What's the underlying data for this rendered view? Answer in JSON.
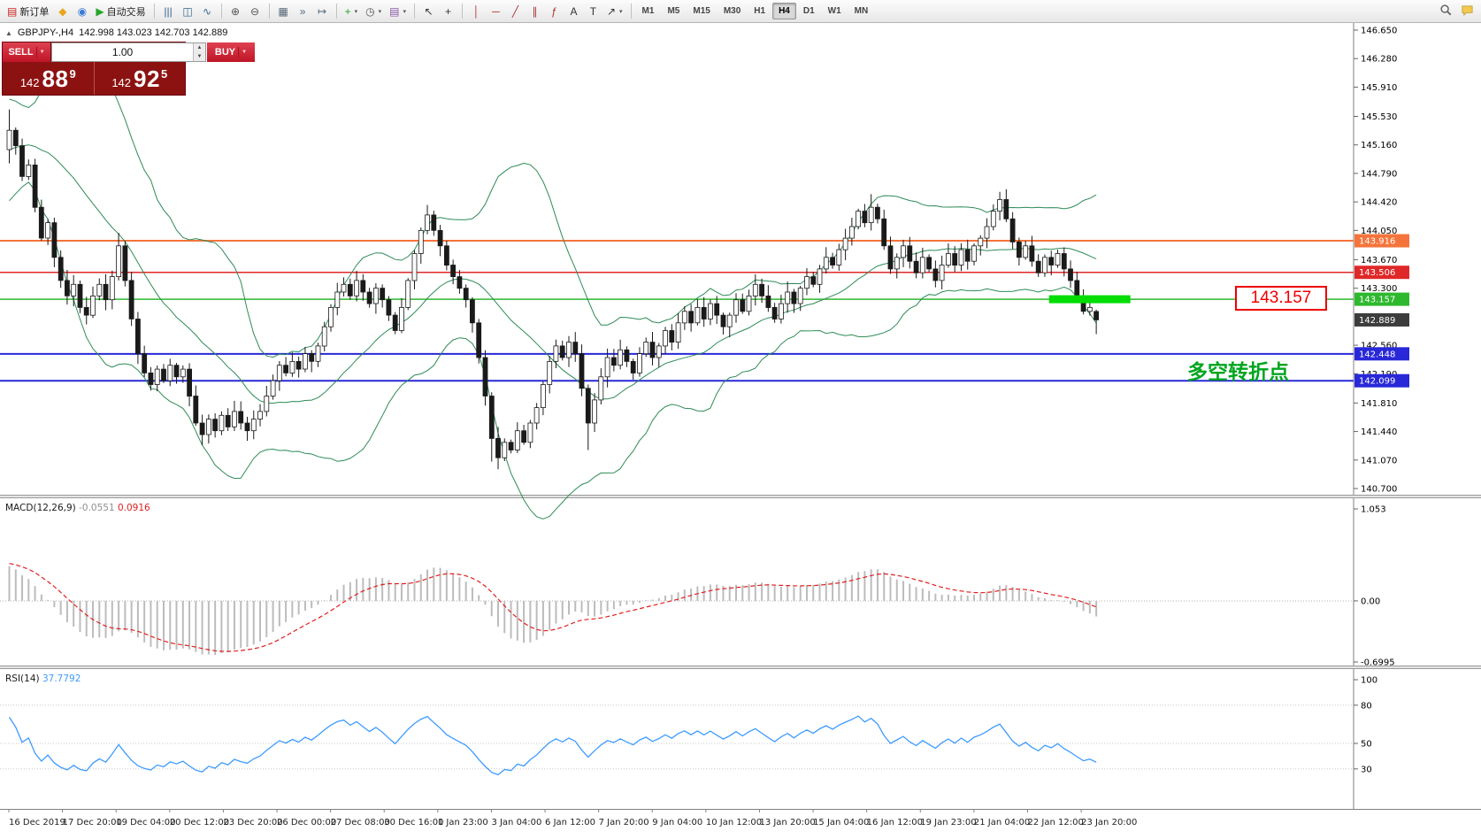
{
  "app": {
    "toolbar": {
      "groups": [
        {
          "name": "orders",
          "items": [
            {
              "name": "new-order-button",
              "glyph": "▤",
              "glyph_color": "#cc2222",
              "label": "新订单"
            },
            {
              "name": "metaeditor-button",
              "glyph": "◆",
              "glyph_color": "#e8a81c",
              "label": ""
            },
            {
              "name": "profiles-button",
              "glyph": "◉",
              "glyph_color": "#3a7bd5",
              "label": ""
            },
            {
              "name": "autotrading-button",
              "glyph": "▶",
              "glyph_color": "#28a428",
              "label": "自动交易"
            }
          ]
        },
        {
          "name": "chart-types",
          "items": [
            {
              "name": "bars-chart-button",
              "glyph": "|||",
              "glyph_color": "#33668f"
            },
            {
              "name": "candlestick-chart-button",
              "glyph": "◫",
              "glyph_color": "#33668f"
            },
            {
              "name": "line-chart-button",
              "glyph": "∿",
              "glyph_color": "#33668f"
            }
          ]
        },
        {
          "name": "zoom",
          "items": [
            {
              "name": "zoom-in-button",
              "glyph": "⊕",
              "glyph_color": "#555555"
            },
            {
              "name": "zoom-out-button",
              "glyph": "⊖",
              "glyph_color": "#555555"
            }
          ]
        },
        {
          "name": "windows",
          "items": [
            {
              "name": "tile-windows-button",
              "glyph": "▦",
              "glyph_color": "#556677"
            },
            {
              "name": "auto-scroll-button",
              "glyph": "»",
              "glyph_color": "#556677"
            },
            {
              "name": "chart-shift-button",
              "glyph": "↦",
              "glyph_color": "#556677"
            }
          ]
        },
        {
          "name": "tools",
          "items": [
            {
              "name": "indicators-button",
              "glyph": "+",
              "glyph_color": "#28a428",
              "dropdown": true
            },
            {
              "name": "periods-button",
              "glyph": "◷",
              "glyph_color": "#555555",
              "dropdown": true
            },
            {
              "name": "templates-button",
              "glyph": "▤",
              "glyph_color": "#8855aa",
              "dropdown": true
            }
          ]
        },
        {
          "name": "cursor",
          "items": [
            {
              "name": "cursor-button",
              "glyph": "↖",
              "glyph_color": "#333333"
            },
            {
              "name": "crosshair-button",
              "glyph": "+",
              "glyph_color": "#333333"
            }
          ]
        },
        {
          "name": "objects",
          "items": [
            {
              "name": "vertical-line-button",
              "glyph": "│",
              "glyph_color": "#aa3333"
            },
            {
              "name": "horizontal-line-button",
              "glyph": "─",
              "glyph_color": "#aa3333"
            },
            {
              "name": "trendline-button",
              "glyph": "╱",
              "glyph_color": "#aa3333"
            },
            {
              "name": "equidistant-channel-button",
              "glyph": "∥",
              "glyph_color": "#aa3333"
            },
            {
              "name": "fibonacci-button",
              "glyph": "ƒ",
              "glyph_color": "#aa3333"
            },
            {
              "name": "text-button",
              "glyph": "A",
              "glyph_color": "#333333"
            },
            {
              "name": "text-label-button",
              "glyph": "T",
              "glyph_color": "#333333"
            },
            {
              "name": "arrows-button",
              "glyph": "↗",
              "glyph_color": "#333333",
              "dropdown": true
            }
          ]
        }
      ],
      "timeframes": [
        "M1",
        "M5",
        "M15",
        "M30",
        "H1",
        "H4",
        "D1",
        "W1",
        "MN"
      ],
      "active": "H4",
      "right_items": [
        {
          "name": "search-button",
          "icon": "search-icon"
        },
        {
          "name": "chat-button",
          "icon": "chat-icon"
        }
      ]
    }
  },
  "chart_header": {
    "collapse": "▲",
    "symbol": "GBPJPY-,H4",
    "ohlc": "142.998 143.023 142.703 142.889"
  },
  "trade_panel": {
    "sell_label": "SELL",
    "buy_label": "BUY",
    "volume": "1.00",
    "sell_small": "142",
    "sell_big": "88",
    "sell_sup": "9",
    "buy_small": "142",
    "buy_big": "92",
    "buy_sup": "5"
  },
  "annotations": {
    "callout_text": "143.157",
    "callout_color": "#ee0000",
    "note_text": "多空转折点",
    "note_color": "#00a51e",
    "highlight_price": 143.157,
    "highlight_color": "#00dd00"
  },
  "chart_data": {
    "type": "candlestick",
    "symbol": "GBPJPY",
    "timeframe": "H4",
    "last_ohlc": {
      "open": 142.998,
      "high": 143.023,
      "low": 142.703,
      "close": 142.889
    },
    "price_axis": {
      "max": 146.65,
      "min": 140.7,
      "ticks": [
        "146.650",
        "146.280",
        "145.910",
        "145.530",
        "145.160",
        "144.790",
        "144.420",
        "144.050",
        "143.670",
        "143.300",
        "142.560",
        "142.190",
        "141.810",
        "141.440",
        "141.070",
        "140.700"
      ]
    },
    "time_labels": [
      "16 Dec 2019",
      "17 Dec 20:00",
      "19 Dec 04:00",
      "20 Dec 12:00",
      "23 Dec 20:00",
      "26 Dec 00:00",
      "27 Dec 08:00",
      "30 Dec 16:00",
      "1 Jan 23:00",
      "3 Jan 04:00",
      "6 Jan 12:00",
      "7 Jan 20:00",
      "9 Jan 04:00",
      "10 Jan 12:00",
      "13 Jan 20:00",
      "15 Jan 04:00",
      "16 Jan 12:00",
      "19 Jan 23:00",
      "21 Jan 04:00",
      "22 Jan 12:00",
      "23 Jan 20:00"
    ],
    "levels": [
      {
        "price": 143.916,
        "label": "143.916",
        "color": "#f4743b",
        "width": 2
      },
      {
        "price": 143.506,
        "label": "143.506",
        "color": "#e02828",
        "width": 1.5
      },
      {
        "price": 143.157,
        "label": "143.157",
        "color": "#2eb82e",
        "width": 1.5
      },
      {
        "price": 142.448,
        "label": "142.448",
        "color": "#2828d8",
        "width": 2
      },
      {
        "price": 142.099,
        "label": "142.099",
        "color": "#2828d8",
        "width": 2
      }
    ],
    "current_price": {
      "label": "142.889",
      "bg": "#3c3c3c"
    },
    "candle": {
      "bull_fill": "#ffffff",
      "bear_fill": "#1a1a1a",
      "stroke": "#1a1a1a"
    },
    "bollinger": {
      "period": 20,
      "deviation": 2,
      "color": "#2e8b57"
    },
    "warmup_closes": [
      143.2,
      143.35,
      143.5,
      143.4,
      143.6,
      143.75,
      143.9,
      144.1,
      144.0,
      144.2,
      144.35,
      144.5,
      144.4,
      144.6,
      144.75,
      144.9,
      144.8,
      145.0,
      145.1,
      145.0,
      145.15,
      145.3,
      145.2,
      145.35,
      145.45,
      145.3,
      145.4,
      145.5,
      145.4,
      145.45
    ],
    "closes": [
      145.35,
      145.15,
      144.75,
      144.9,
      144.35,
      143.95,
      144.15,
      143.7,
      143.4,
      143.2,
      143.35,
      143.05,
      142.95,
      143.2,
      143.35,
      143.15,
      143.45,
      143.85,
      143.4,
      142.9,
      142.45,
      142.2,
      142.05,
      142.25,
      142.1,
      142.3,
      142.15,
      142.25,
      141.9,
      141.55,
      141.4,
      141.6,
      141.45,
      141.65,
      141.5,
      141.7,
      141.55,
      141.45,
      141.6,
      141.7,
      141.9,
      142.1,
      142.3,
      142.2,
      142.35,
      142.25,
      142.45,
      142.35,
      142.55,
      142.8,
      143.05,
      143.25,
      143.35,
      143.2,
      143.4,
      143.25,
      143.1,
      143.3,
      143.15,
      142.95,
      142.75,
      143.05,
      143.4,
      143.75,
      144.05,
      144.25,
      144.05,
      143.85,
      143.6,
      143.45,
      143.3,
      143.15,
      142.85,
      142.4,
      141.9,
      141.35,
      141.1,
      141.3,
      141.2,
      141.45,
      141.3,
      141.55,
      141.75,
      142.05,
      142.35,
      142.55,
      142.4,
      142.6,
      142.45,
      142.0,
      141.55,
      141.85,
      142.15,
      142.4,
      142.3,
      142.5,
      142.35,
      142.2,
      142.45,
      142.6,
      142.4,
      142.55,
      142.75,
      142.6,
      142.85,
      143.0,
      142.85,
      143.05,
      142.9,
      143.1,
      142.95,
      142.8,
      142.95,
      143.15,
      143.0,
      143.2,
      143.35,
      143.2,
      143.05,
      142.9,
      143.1,
      143.25,
      143.1,
      143.3,
      143.45,
      143.35,
      143.55,
      143.7,
      143.6,
      143.8,
      143.95,
      144.1,
      144.3,
      144.15,
      144.35,
      144.2,
      143.85,
      143.55,
      143.7,
      143.85,
      143.65,
      143.5,
      143.7,
      143.55,
      143.4,
      143.6,
      143.75,
      143.6,
      143.8,
      143.65,
      143.85,
      143.95,
      144.1,
      144.3,
      144.45,
      144.2,
      143.9,
      143.7,
      143.85,
      143.65,
      143.5,
      143.7,
      143.6,
      143.75,
      143.55,
      143.4,
      143.2,
      143.0,
      143.05,
      142.889
    ],
    "overrides": {
      "0": [
        145.1,
        145.62,
        144.92,
        145.35
      ],
      "17": [
        143.45,
        144.02,
        143.4,
        143.85
      ],
      "65": [
        144.05,
        144.38,
        144.0,
        144.25
      ],
      "75": [
        141.9,
        141.95,
        141.05,
        141.35
      ],
      "76": [
        141.35,
        141.5,
        140.95,
        141.1
      ],
      "90": [
        142.0,
        142.05,
        141.2,
        141.55
      ],
      "134": [
        144.15,
        144.52,
        144.05,
        144.35
      ],
      "154": [
        144.3,
        144.55,
        144.18,
        144.45
      ],
      "169": [
        142.998,
        143.023,
        142.703,
        142.889
      ]
    },
    "macd": {
      "label": "MACD(12,26,9)",
      "values_text": [
        "-0.0551",
        "0.0916"
      ],
      "params": [
        12,
        26,
        9
      ],
      "scale_labels": [
        "1.053",
        "0.00",
        "-0.6995"
      ],
      "max": 1.053,
      "min": -0.6995,
      "hist_color": "#bcbcbc",
      "signal_color": "#e02020"
    },
    "rsi": {
      "label": "RSI(14)",
      "value_text": "37.7792",
      "period": 14,
      "scale_labels": [
        "100",
        "80",
        "50",
        "30"
      ],
      "levels": [
        80,
        50,
        30
      ],
      "line_color": "#3e9bff"
    }
  }
}
